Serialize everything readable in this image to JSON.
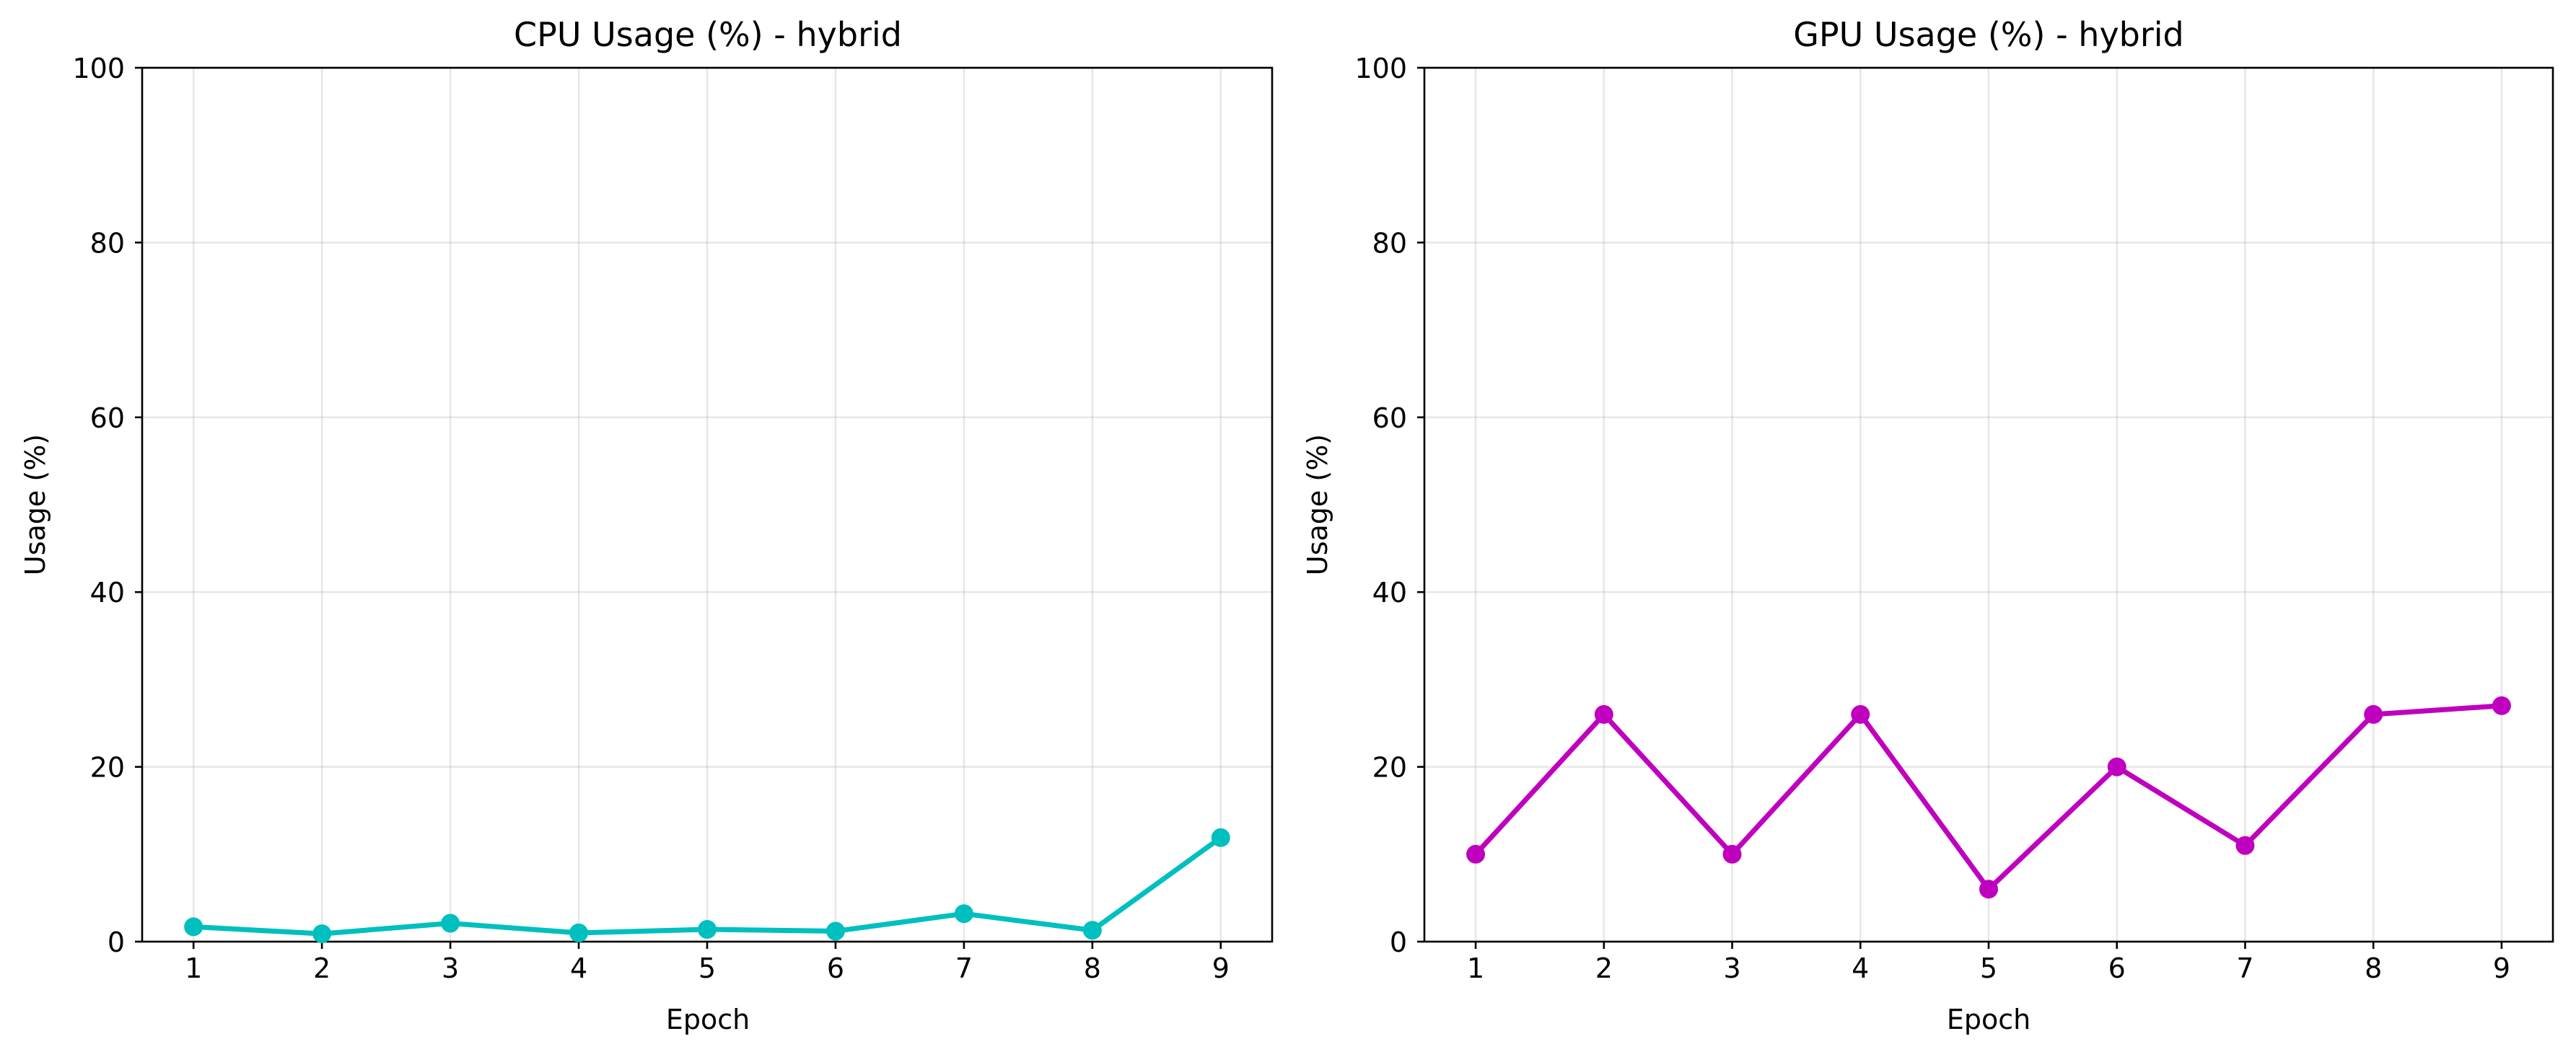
{
  "chart_data": [
    {
      "type": "line",
      "title": "CPU Usage (%) - hybrid",
      "xlabel": "Epoch",
      "ylabel": "Usage (%)",
      "x": [
        1,
        2,
        3,
        4,
        5,
        6,
        7,
        8,
        9
      ],
      "series": [
        {
          "values": [
            1.7,
            0.9,
            2.1,
            1.0,
            1.4,
            1.2,
            3.2,
            1.3,
            11.9
          ],
          "color": "#00bfbf"
        }
      ],
      "xlim": [
        0.6,
        9.4
      ],
      "ylim": [
        0,
        100
      ],
      "xticks": [
        1,
        2,
        3,
        4,
        5,
        6,
        7,
        8,
        9
      ],
      "yticks": [
        0,
        20,
        40,
        60,
        80,
        100
      ],
      "grid": true,
      "legend": "none"
    },
    {
      "type": "line",
      "title": "GPU Usage (%) - hybrid",
      "xlabel": "Epoch",
      "ylabel": "Usage (%)",
      "x": [
        1,
        2,
        3,
        4,
        5,
        6,
        7,
        8,
        9
      ],
      "series": [
        {
          "values": [
            10,
            26,
            10,
            26,
            6,
            20,
            11,
            26,
            27
          ],
          "color": "#bf00bf"
        }
      ],
      "xlim": [
        0.6,
        9.4
      ],
      "ylim": [
        0,
        100
      ],
      "xticks": [
        1,
        2,
        3,
        4,
        5,
        6,
        7,
        8,
        9
      ],
      "yticks": [
        0,
        20,
        40,
        60,
        80,
        100
      ],
      "grid": true,
      "legend": "none"
    }
  ]
}
